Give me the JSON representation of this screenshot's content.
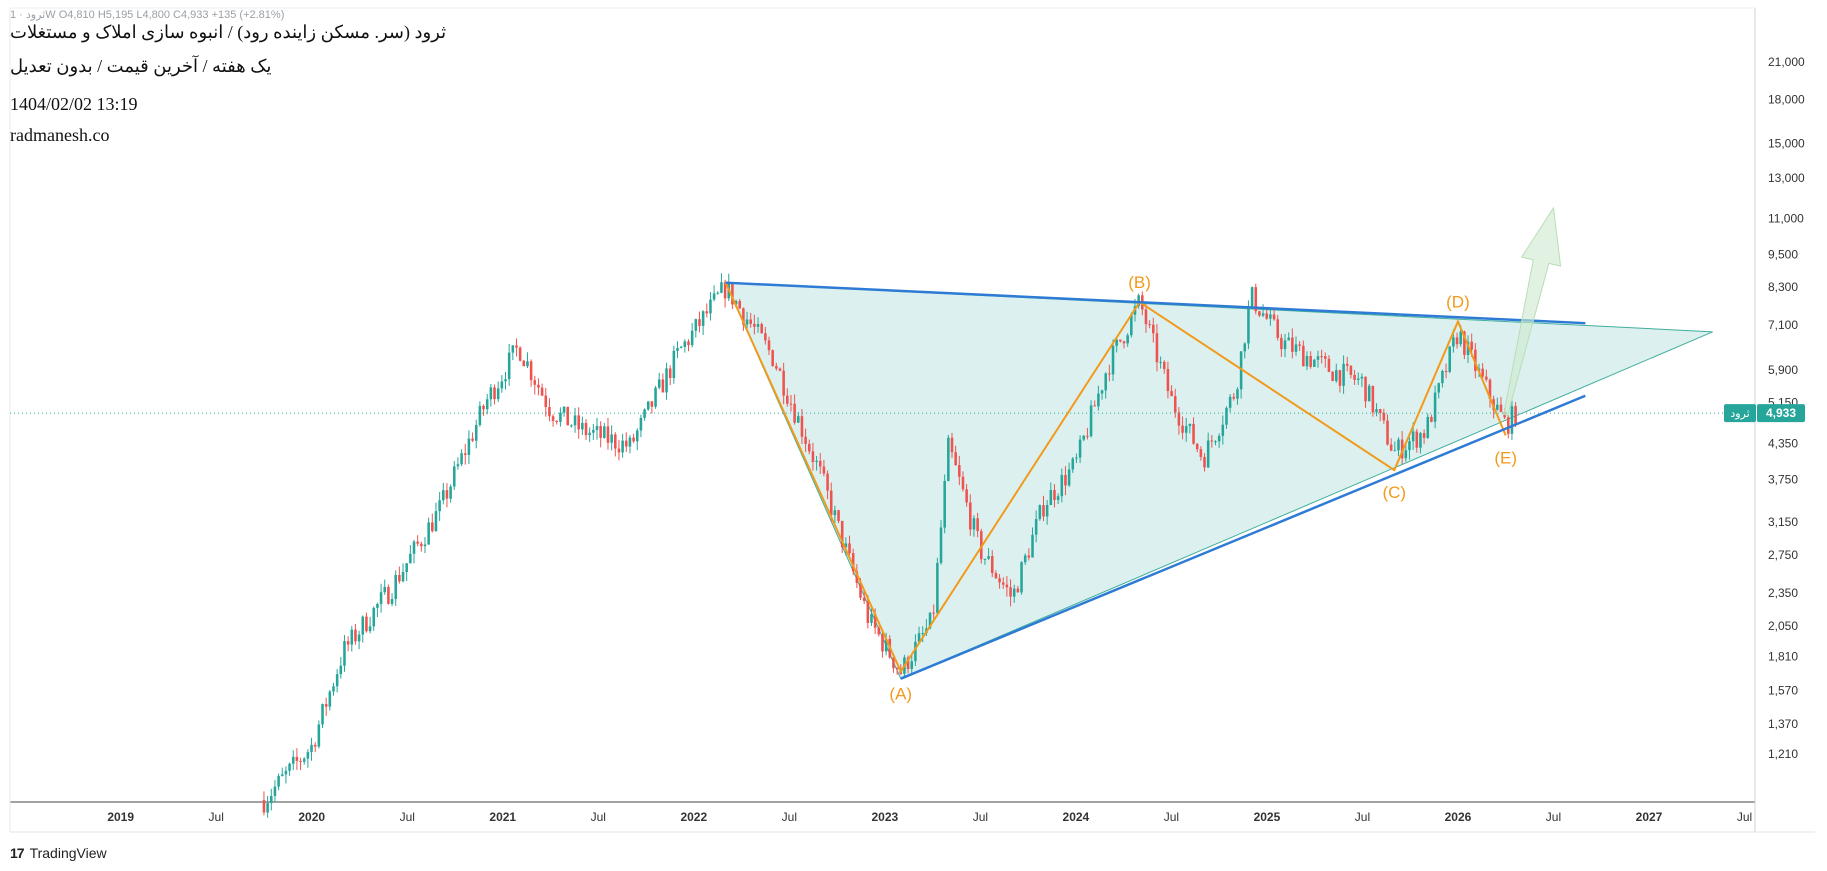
{
  "header": {
    "title": "ثرود (سر. مسکن زاینده رود) / انبوه سازی املاک و مستغلات",
    "subtitle": "یک هفته / آخرین قیمت / بدون تعدیل",
    "timestamp": "1404/02/02 13:19",
    "website": "radmanesh.co",
    "ohlc_line": "ثرود · 1W  O4,810  H5,195  L4,800  C4,933  +135 (+2.81%)"
  },
  "footer": {
    "brand": "TradingView"
  },
  "price_label": {
    "symbol": "ثرود",
    "value": "4,933"
  },
  "colors": {
    "up": "#26a69a",
    "down": "#ef5350",
    "trendline": "#2e7bd6",
    "wave": "#f29a1b",
    "triangle_fill": "#d6efec",
    "current_price": "#26a69a",
    "arrow": "#cfe9cf"
  },
  "chart_data": {
    "type": "candlestick",
    "y_scale": "log",
    "ylim": [
      1050,
      21600
    ],
    "y_ticks": [
      "21,000",
      "18,000",
      "15,000",
      "13,000",
      "11,000",
      "9,500",
      "8,300",
      "7,100",
      "5,900",
      "5,150",
      "4,350",
      "3,750",
      "3,150",
      "2,750",
      "2,350",
      "2,050",
      "1,810",
      "1,570",
      "1,370",
      "1,210"
    ],
    "x_ticks": [
      "2019",
      "Jul",
      "2020",
      "Jul",
      "2021",
      "Jul",
      "2022",
      "Jul",
      "2023",
      "Jul",
      "2024",
      "Jul",
      "2025",
      "Jul",
      "2026",
      "Jul",
      "2027",
      "Jul"
    ],
    "last_price": 4933,
    "price_path": [
      [
        "2019-10",
        1000
      ],
      [
        "2020-01",
        1250
      ],
      [
        "2020-03",
        1850
      ],
      [
        "2020-06",
        2400
      ],
      [
        "2020-09",
        3300
      ],
      [
        "2020-12",
        5200
      ],
      [
        "2021-02",
        6500
      ],
      [
        "2021-04",
        5000
      ],
      [
        "2021-06",
        4600
      ],
      [
        "2021-09",
        4300
      ],
      [
        "2021-12",
        6300
      ],
      [
        "2022-03",
        8300
      ],
      [
        "2022-06",
        6200
      ],
      [
        "2022-09",
        3800
      ],
      [
        "2022-12",
        2100
      ],
      [
        "2023-02",
        1700
      ],
      [
        "2023-04",
        2100
      ],
      [
        "2023-05",
        4300
      ],
      [
        "2023-07",
        2800
      ],
      [
        "2023-09",
        2300
      ],
      [
        "2023-11",
        3400
      ],
      [
        "2024-01",
        4000
      ],
      [
        "2024-03",
        6000
      ],
      [
        "2024-05",
        7800
      ],
      [
        "2024-07",
        5200
      ],
      [
        "2024-09",
        4100
      ],
      [
        "2024-11",
        5400
      ],
      [
        "2024-12",
        8000
      ],
      [
        "2025-02",
        6600
      ],
      [
        "2025-05",
        5900
      ],
      [
        "2025-07",
        5600
      ],
      [
        "2025-09",
        4200
      ],
      [
        "2025-11",
        4600
      ],
      [
        "2026-01",
        6900
      ],
      [
        "2026-03",
        5300
      ],
      [
        "2026-04",
        4700
      ],
      [
        "2026-04-20",
        4933
      ]
    ],
    "waves": [
      {
        "label": "(A)",
        "date": "2023-02",
        "price": 1700
      },
      {
        "label": "(B)",
        "date": "2024-05",
        "price": 7800
      },
      {
        "label": "(C)",
        "date": "2025-09",
        "price": 3900
      },
      {
        "label": "(D)",
        "date": "2026-01",
        "price": 7200
      },
      {
        "label": "(E)",
        "date": "2026-04",
        "price": 4500
      }
    ],
    "triangle": {
      "upper": [
        [
          "2022-03",
          8450
        ],
        [
          "2026-09",
          7150
        ]
      ],
      "lower": [
        [
          "2023-02",
          1650
        ],
        [
          "2026-09",
          5300
        ]
      ],
      "apex": [
        "2027-05",
        6900
      ]
    },
    "projection_arrow": {
      "from": [
        "2026-04",
        4900
      ],
      "to": [
        "2026-07",
        11500
      ]
    }
  }
}
